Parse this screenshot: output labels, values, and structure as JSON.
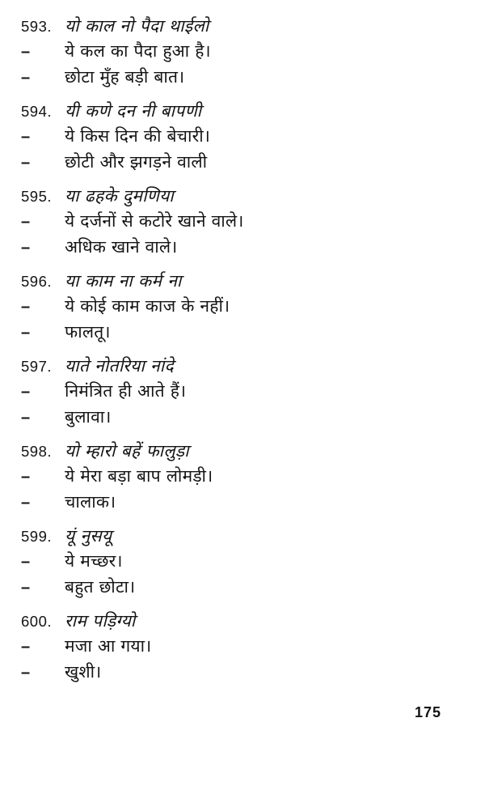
{
  "page_number": "175",
  "dash": "–",
  "entries": [
    {
      "number": "593.",
      "headword": "यो काल नो पैदा थाईलो",
      "meanings": [
        "ये कल का पैदा हुआ है।",
        "छोटा मुँह बड़ी बात।"
      ]
    },
    {
      "number": "594.",
      "headword": "यी कणे दन नी बापणी",
      "meanings": [
        "ये किस दिन की बेचारी।",
        "छोटी और झगड़ने वाली"
      ]
    },
    {
      "number": "595.",
      "headword": "या ढहके दुमणिया",
      "meanings": [
        "ये दर्जनों से कटोरे खाने वाले।",
        "अधिक खाने वाले।"
      ]
    },
    {
      "number": "596.",
      "headword": "या काम ना कर्म ना",
      "meanings": [
        "ये कोई काम काज के नहीं।",
        "फालतू।"
      ]
    },
    {
      "number": "597.",
      "headword": "याते नोतरिया नांदे",
      "meanings": [
        "निमंत्रित ही आते हैं।",
        "बुलावा।"
      ]
    },
    {
      "number": "598.",
      "headword": "यो म्हारो बहें फालुड़ा",
      "meanings": [
        "ये मेरा बड़ा बाप लोमड़ी।",
        "चालाक।"
      ]
    },
    {
      "number": "599.",
      "headword": "यूं नुसयू",
      "meanings": [
        "ये मच्छर।",
        "बहुत छोटा।"
      ]
    },
    {
      "number": "600.",
      "headword": "राम पड़िग्यो",
      "meanings": [
        "मजा आ गया।",
        "खुशी।"
      ]
    }
  ]
}
